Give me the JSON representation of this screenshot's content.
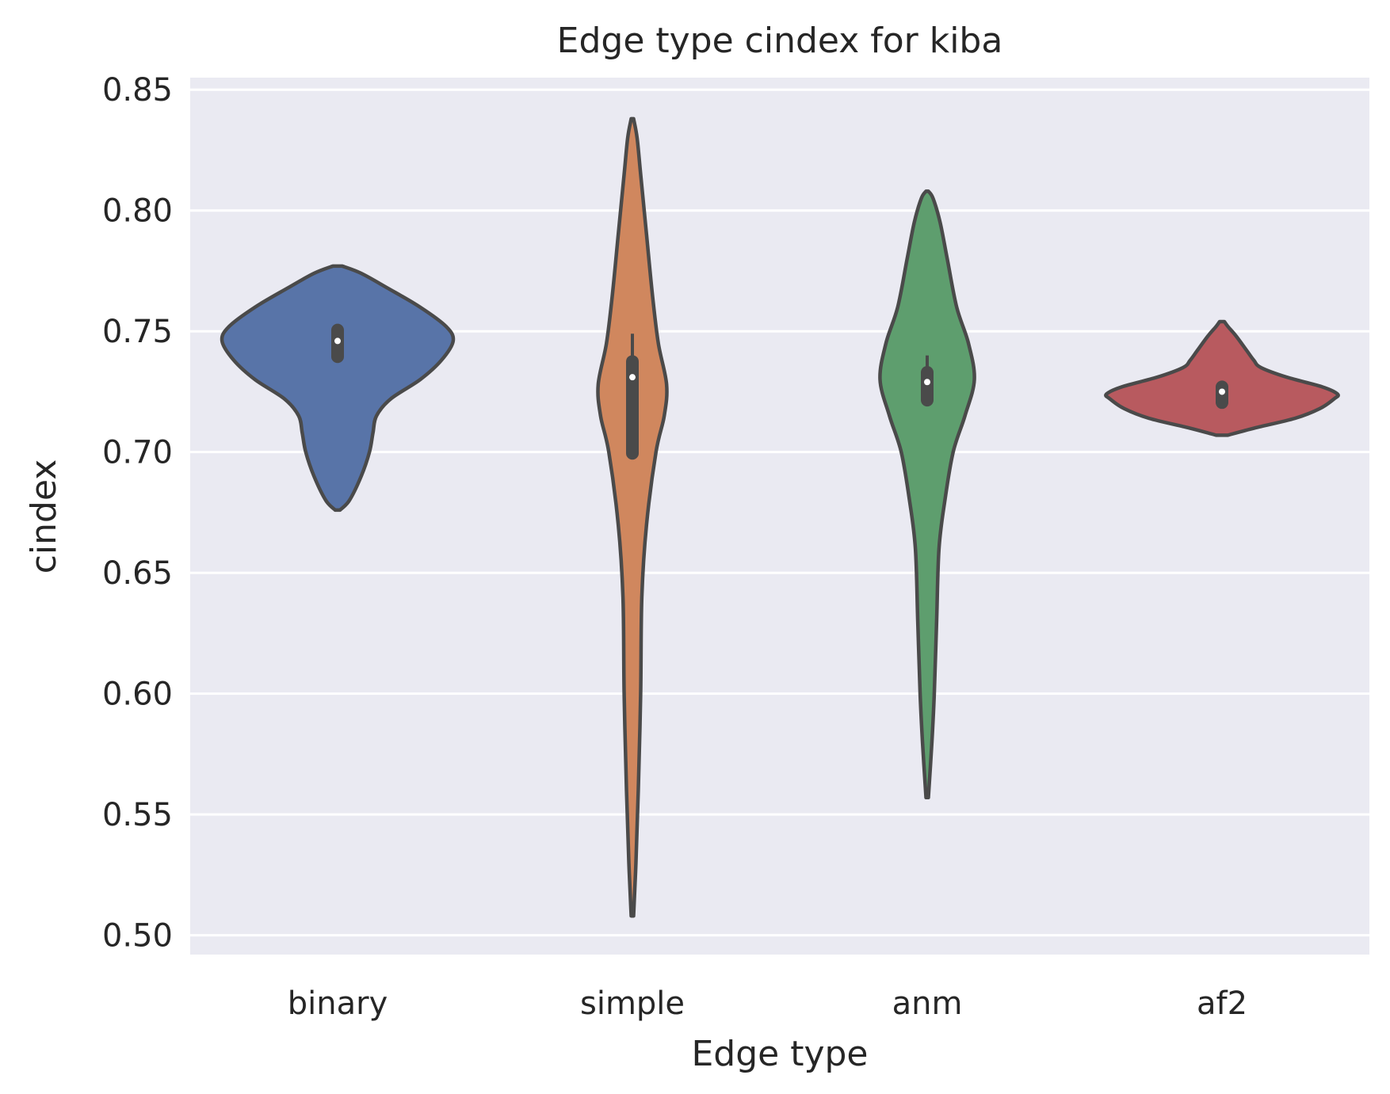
{
  "chart_data": {
    "type": "violin",
    "title": "Edge type cindex for kiba",
    "xlabel": "Edge type",
    "ylabel": "cindex",
    "ylim": [
      0.492,
      0.855
    ],
    "yticks": [
      "0.50",
      "0.55",
      "0.60",
      "0.65",
      "0.70",
      "0.75",
      "0.80",
      "0.85"
    ],
    "ytick_values": [
      0.5,
      0.55,
      0.6,
      0.65,
      0.7,
      0.75,
      0.8,
      0.85
    ],
    "grid": true,
    "background": "#eaeaf2",
    "line_color": "#4a4a4a",
    "categories": [
      "binary",
      "simple",
      "anm",
      "af2"
    ],
    "series": [
      {
        "category": "binary",
        "color": "#5874a8",
        "min": 0.676,
        "max": 0.777,
        "q1": 0.7395,
        "median": 0.746,
        "q3": 0.7505,
        "whisker_low": 0.7395,
        "whisker_high": 0.7505,
        "density": [
          [
            0.676,
            0.02
          ],
          [
            0.68,
            0.1
          ],
          [
            0.69,
            0.2
          ],
          [
            0.7,
            0.27
          ],
          [
            0.708,
            0.3
          ],
          [
            0.715,
            0.33
          ],
          [
            0.722,
            0.45
          ],
          [
            0.73,
            0.7
          ],
          [
            0.738,
            0.88
          ],
          [
            0.746,
            0.98
          ],
          [
            0.752,
            0.92
          ],
          [
            0.76,
            0.7
          ],
          [
            0.768,
            0.42
          ],
          [
            0.774,
            0.2
          ],
          [
            0.777,
            0.04
          ]
        ]
      },
      {
        "category": "simple",
        "color": "#d0875e",
        "min": 0.508,
        "max": 0.838,
        "q1": 0.6995,
        "median": 0.731,
        "q3": 0.7375,
        "whisker_low": 0.6995,
        "whisker_high": 0.749,
        "density": [
          [
            0.508,
            0.01
          ],
          [
            0.53,
            0.03
          ],
          [
            0.56,
            0.05
          ],
          [
            0.6,
            0.07
          ],
          [
            0.64,
            0.08
          ],
          [
            0.67,
            0.12
          ],
          [
            0.7,
            0.2
          ],
          [
            0.715,
            0.27
          ],
          [
            0.728,
            0.29
          ],
          [
            0.745,
            0.22
          ],
          [
            0.765,
            0.17
          ],
          [
            0.79,
            0.12
          ],
          [
            0.815,
            0.07
          ],
          [
            0.83,
            0.04
          ],
          [
            0.838,
            0.01
          ]
        ]
      },
      {
        "category": "anm",
        "color": "#5e9e6e",
        "min": 0.557,
        "max": 0.808,
        "q1": 0.7215,
        "median": 0.729,
        "q3": 0.733,
        "whisker_low": 0.7215,
        "whisker_high": 0.74,
        "density": [
          [
            0.557,
            0.01
          ],
          [
            0.58,
            0.04
          ],
          [
            0.6,
            0.06
          ],
          [
            0.63,
            0.08
          ],
          [
            0.66,
            0.1
          ],
          [
            0.68,
            0.15
          ],
          [
            0.7,
            0.22
          ],
          [
            0.715,
            0.32
          ],
          [
            0.73,
            0.4
          ],
          [
            0.745,
            0.35
          ],
          [
            0.76,
            0.25
          ],
          [
            0.78,
            0.17
          ],
          [
            0.795,
            0.11
          ],
          [
            0.805,
            0.05
          ],
          [
            0.808,
            0.01
          ]
        ]
      },
      {
        "category": "af2",
        "color": "#b85a5f",
        "min": 0.707,
        "max": 0.754,
        "q1": 0.7205,
        "median": 0.725,
        "q3": 0.727,
        "whisker_low": 0.7205,
        "whisker_high": 0.727,
        "density": [
          [
            0.707,
            0.05
          ],
          [
            0.71,
            0.28
          ],
          [
            0.714,
            0.62
          ],
          [
            0.718,
            0.83
          ],
          [
            0.722,
            0.95
          ],
          [
            0.724,
            0.98
          ],
          [
            0.727,
            0.85
          ],
          [
            0.731,
            0.55
          ],
          [
            0.735,
            0.33
          ],
          [
            0.738,
            0.27
          ],
          [
            0.742,
            0.21
          ],
          [
            0.748,
            0.12
          ],
          [
            0.752,
            0.05
          ],
          [
            0.754,
            0.02
          ]
        ]
      }
    ]
  }
}
